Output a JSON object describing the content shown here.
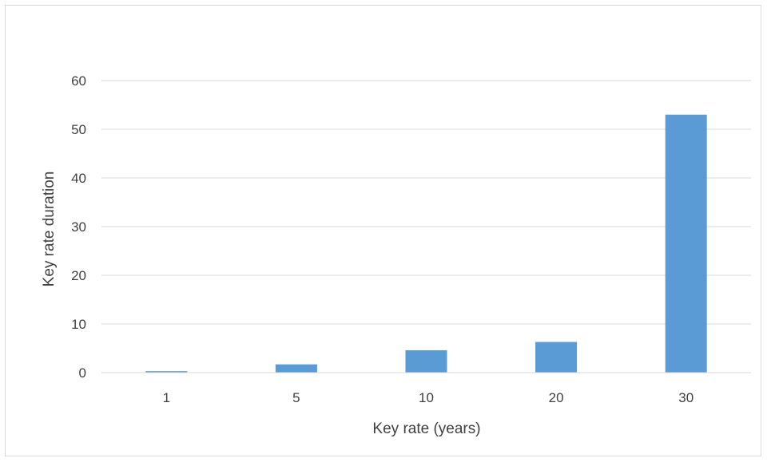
{
  "chart_data": {
    "type": "bar",
    "categories": [
      "1",
      "5",
      "10",
      "20",
      "30"
    ],
    "series": [
      {
        "values": [
          0.3,
          1.7,
          4.6,
          6.3,
          53
        ]
      }
    ],
    "xlabel": "Key rate (years)",
    "ylabel": "Key rate duration",
    "ylim": [
      0,
      60
    ],
    "yticks": [
      "0",
      "10",
      "20",
      "30",
      "40",
      "50",
      "60"
    ],
    "grid": true,
    "legend": "none",
    "colors": {
      "bar": "#5B9BD5",
      "grid": "#d9d9d9",
      "text": "#404040"
    }
  }
}
